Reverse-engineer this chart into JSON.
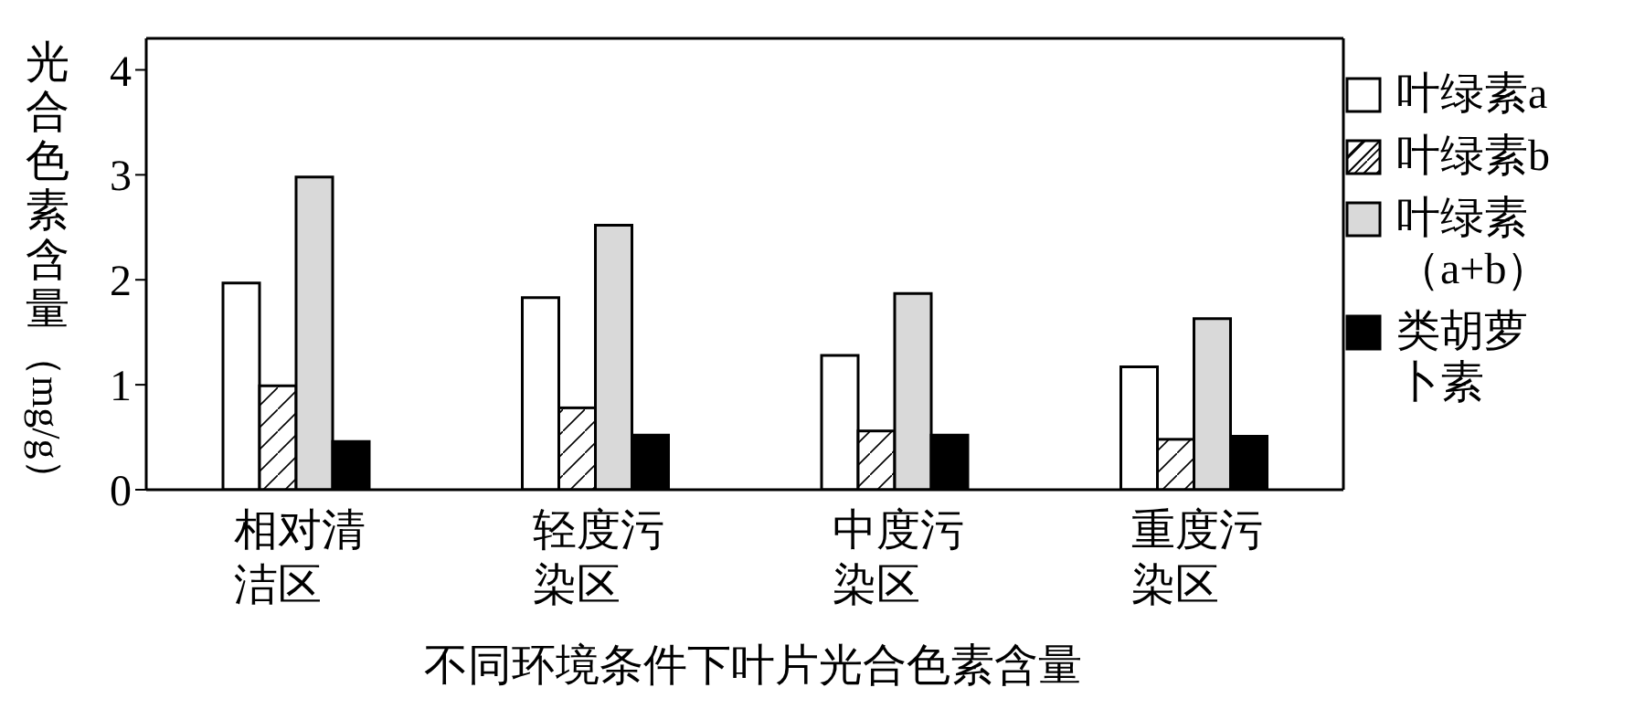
{
  "chart_data": {
    "type": "bar",
    "xlabel": "不同环境条件下叶片光合色素含量",
    "ylabel": "光合色素含量（mg/g）",
    "categories": [
      "相对清洁区",
      "轻度污染区",
      "中度污染区",
      "重度污染区"
    ],
    "series": [
      {
        "name": "叶绿素a",
        "color": "#ffffff",
        "values": [
          1.97,
          1.83,
          1.28,
          1.17
        ]
      },
      {
        "name": "叶绿素b",
        "color": "#ffffff",
        "values": [
          0.99,
          0.78,
          0.56,
          0.48
        ]
      },
      {
        "name": "叶绿素（a+b）",
        "color": "#d9d9d9",
        "values": [
          2.98,
          2.52,
          1.87,
          1.63
        ]
      },
      {
        "name": "类胡萝卜素",
        "color": "#000000",
        "values": [
          0.46,
          0.52,
          0.52,
          0.51
        ]
      }
    ],
    "ylim": [
      0,
      4.3
    ],
    "yticks": [
      0,
      1,
      2,
      3,
      4
    ],
    "grid": false,
    "legend": "right"
  }
}
